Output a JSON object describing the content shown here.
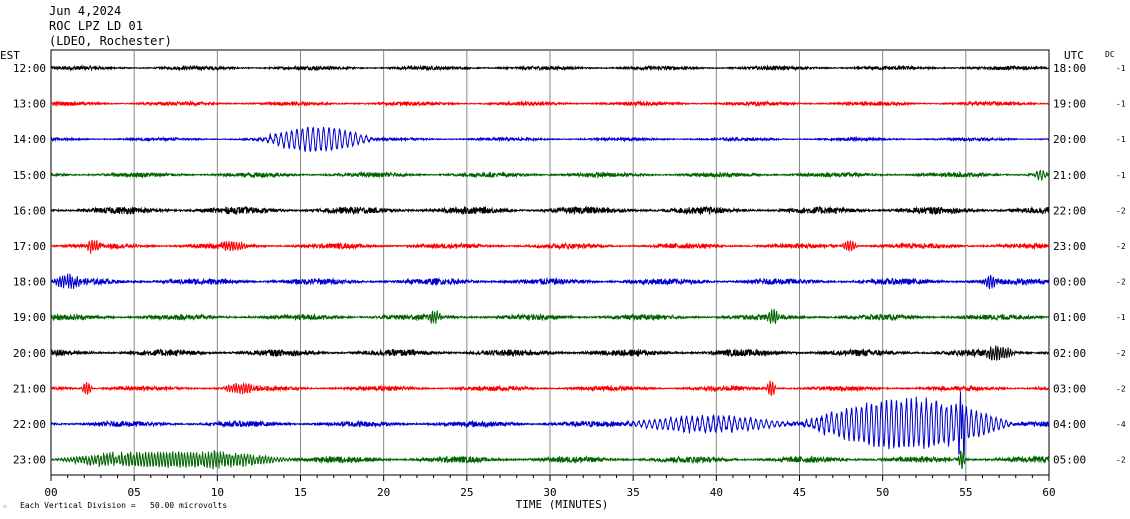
{
  "header": {
    "date": "Jun 4,2024",
    "station": "ROC LPZ LD 01",
    "location": "(LDEO, Rochester)"
  },
  "left_axis_label": "EST",
  "right_axis_label": "UTC",
  "dc_label": "DC",
  "footer_note": "Each Vertical Division =   50.00 microvolts",
  "footer_icon": "small-logo-glyph",
  "chart_data": {
    "type": "line",
    "xlabel": "TIME (MINUTES)",
    "xlim": [
      0,
      60
    ],
    "x_ticks": [
      "00",
      "05",
      "10",
      "15",
      "20",
      "25",
      "30",
      "35",
      "40",
      "45",
      "50",
      "55",
      "60"
    ],
    "trace_colors": [
      "#000000",
      "#ff0000",
      "#0000cc",
      "#006400"
    ],
    "rows": [
      {
        "est": "12:00",
        "utc": "18:00",
        "dc": "-1",
        "color": "#000000",
        "noise": 2.0,
        "events": []
      },
      {
        "est": "13:00",
        "utc": "19:00",
        "dc": "-1",
        "color": "#ff0000",
        "noise": 2.0,
        "events": []
      },
      {
        "est": "14:00",
        "utc": "20:00",
        "dc": "-1",
        "color": "#0000cc",
        "noise": 1.6,
        "events": [
          {
            "start": 12.5,
            "end": 19.5,
            "amp": 13,
            "period": 0.32
          }
        ]
      },
      {
        "est": "15:00",
        "utc": "21:00",
        "dc": "-1",
        "color": "#006400",
        "noise": 2.4,
        "events": [
          {
            "start": 59,
            "end": 60,
            "amp": 5,
            "period": 0.2
          }
        ]
      },
      {
        "est": "16:00",
        "utc": "22:00",
        "dc": "-2",
        "color": "#000000",
        "noise": 3.6,
        "events": []
      },
      {
        "est": "17:00",
        "utc": "23:00",
        "dc": "-2",
        "color": "#ff0000",
        "noise": 2.6,
        "events": [
          {
            "start": 2,
            "end": 3,
            "amp": 6,
            "period": 0.15
          },
          {
            "start": 10,
            "end": 12,
            "amp": 5,
            "period": 0.15
          },
          {
            "start": 47.5,
            "end": 48.5,
            "amp": 6,
            "period": 0.15
          }
        ]
      },
      {
        "est": "18:00",
        "utc": "00:00",
        "dc": "-2",
        "color": "#0000cc",
        "noise": 3.2,
        "events": [
          {
            "start": 0,
            "end": 2,
            "amp": 6,
            "period": 0.15
          },
          {
            "start": 56,
            "end": 57,
            "amp": 6,
            "period": 0.15
          }
        ]
      },
      {
        "est": "19:00",
        "utc": "01:00",
        "dc": "-1",
        "color": "#006400",
        "noise": 2.8,
        "events": [
          {
            "start": 22.5,
            "end": 23.5,
            "amp": 7,
            "period": 0.15
          },
          {
            "start": 43,
            "end": 43.8,
            "amp": 7,
            "period": 0.15
          }
        ]
      },
      {
        "est": "20:00",
        "utc": "02:00",
        "dc": "-2",
        "color": "#000000",
        "noise": 3.4,
        "events": [
          {
            "start": 56,
            "end": 58,
            "amp": 7,
            "period": 0.15
          }
        ]
      },
      {
        "est": "21:00",
        "utc": "03:00",
        "dc": "-2",
        "color": "#ff0000",
        "noise": 2.4,
        "events": [
          {
            "start": 1.8,
            "end": 2.5,
            "amp": 7,
            "period": 0.15
          },
          {
            "start": 10.2,
            "end": 12.5,
            "amp": 5,
            "period": 0.15
          },
          {
            "start": 43,
            "end": 43.6,
            "amp": 9,
            "period": 0.15
          }
        ]
      },
      {
        "est": "22:00",
        "utc": "04:00",
        "dc": "-4",
        "color": "#0000cc",
        "noise": 3.0,
        "events": [
          {
            "start": 34,
            "end": 45,
            "amp": 8,
            "period": 0.32
          },
          {
            "start": 45,
            "end": 58,
            "amp": 26,
            "period": 0.3
          },
          {
            "start": 54.5,
            "end": 55,
            "amp": 30,
            "period": 0.15
          }
        ]
      },
      {
        "est": "23:00",
        "utc": "05:00",
        "dc": "-2",
        "color": "#006400",
        "noise": 3.2,
        "events": [
          {
            "start": 0,
            "end": 15,
            "amp": 8,
            "period": 0.18
          },
          {
            "start": 54.5,
            "end": 55,
            "amp": 10,
            "period": 0.15
          }
        ]
      }
    ]
  }
}
